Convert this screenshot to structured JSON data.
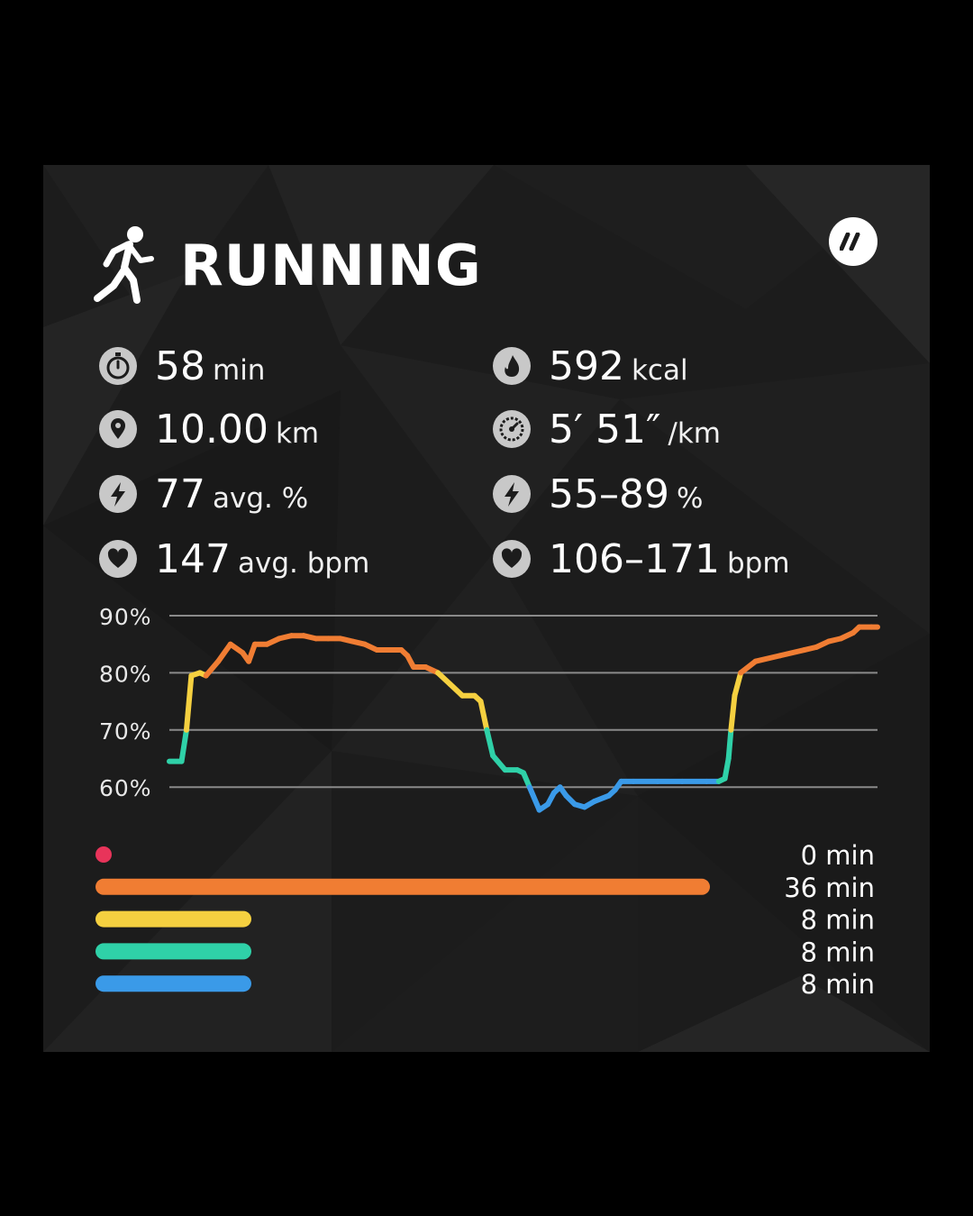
{
  "header": {
    "title": "RUNNING",
    "activity_icon": "running-person-icon",
    "brand_icon": "brand-logo-icon"
  },
  "stats": {
    "left": [
      {
        "icon": "stopwatch-icon",
        "value": "58",
        "unit": "min"
      },
      {
        "icon": "location-pin-icon",
        "value": "10.00",
        "unit": "km"
      },
      {
        "icon": "lightning-icon",
        "value": "77",
        "unit": "avg. %"
      },
      {
        "icon": "heart-icon",
        "value": "147",
        "unit": "avg. bpm"
      }
    ],
    "right": [
      {
        "icon": "flame-icon",
        "value": "592",
        "unit": "kcal"
      },
      {
        "icon": "speedometer-icon",
        "value": "5′ 51″",
        "unit": "/km"
      },
      {
        "icon": "lightning-icon",
        "value": "55–89",
        "unit": "%"
      },
      {
        "icon": "heart-icon",
        "value": "106–171",
        "unit": "bpm"
      }
    ]
  },
  "colors": {
    "zone_red": "#e8345a",
    "zone_orange": "#f07d33",
    "zone_yellow": "#f5d040",
    "zone_green": "#2fd1a8",
    "zone_blue": "#3a9ae8",
    "grid": "#8a8a8a",
    "icon_bg": "#c8c8c8"
  },
  "chart_data": {
    "type": "line",
    "ylabel": "",
    "xlabel": "",
    "yticks": [
      "90%",
      "80%",
      "70%",
      "60%"
    ],
    "ytick_values": [
      90,
      80,
      70,
      60
    ],
    "ylim": [
      55,
      92
    ],
    "xlim": [
      0,
      58
    ],
    "x_unit": "min",
    "zone_thresholds": {
      "blue_max": 61,
      "green_max": 70,
      "yellow_max": 80
    },
    "series": [
      {
        "values": [
          [
            0.0,
            64.5
          ],
          [
            1.0,
            64.5
          ],
          [
            1.4,
            70
          ],
          [
            1.8,
            79.5
          ],
          [
            2.5,
            80
          ],
          [
            3.0,
            79.5
          ],
          [
            4.0,
            82
          ],
          [
            5.0,
            85
          ],
          [
            6.0,
            83.5
          ],
          [
            6.5,
            82
          ],
          [
            7.0,
            85
          ],
          [
            8.0,
            85
          ],
          [
            9.0,
            86
          ],
          [
            10.0,
            86.5
          ],
          [
            11.0,
            86.5
          ],
          [
            12.0,
            86
          ],
          [
            13.0,
            86
          ],
          [
            14.0,
            86
          ],
          [
            15.0,
            85.5
          ],
          [
            16.0,
            85
          ],
          [
            17.0,
            84
          ],
          [
            18.0,
            84
          ],
          [
            19.0,
            84
          ],
          [
            19.5,
            83
          ],
          [
            20.0,
            81
          ],
          [
            21.0,
            81
          ],
          [
            22.0,
            80
          ],
          [
            23.0,
            78
          ],
          [
            24.0,
            76
          ],
          [
            25.0,
            76
          ],
          [
            25.5,
            75
          ],
          [
            26.0,
            70
          ],
          [
            26.5,
            65.5
          ],
          [
            27.5,
            63
          ],
          [
            28.5,
            63
          ],
          [
            29.0,
            62.5
          ],
          [
            29.5,
            60
          ],
          [
            30.3,
            56
          ],
          [
            31.0,
            57
          ],
          [
            31.5,
            59
          ],
          [
            32.0,
            60
          ],
          [
            32.5,
            58.5
          ],
          [
            33.2,
            57
          ],
          [
            34.0,
            56.5
          ],
          [
            34.8,
            57.5
          ],
          [
            36.0,
            58.5
          ],
          [
            36.5,
            59.5
          ],
          [
            37.0,
            61
          ],
          [
            38.0,
            61
          ],
          [
            40.0,
            61
          ],
          [
            42.0,
            61
          ],
          [
            44.0,
            61
          ],
          [
            45.0,
            61
          ],
          [
            45.5,
            61.5
          ],
          [
            45.8,
            65
          ],
          [
            46.0,
            70
          ],
          [
            46.3,
            76
          ],
          [
            46.8,
            80
          ],
          [
            48.0,
            82
          ],
          [
            50.0,
            83
          ],
          [
            52.0,
            84
          ],
          [
            53.0,
            84.5
          ],
          [
            54.0,
            85.5
          ],
          [
            55.0,
            86
          ],
          [
            56.0,
            87
          ],
          [
            56.5,
            88
          ],
          [
            57.5,
            88
          ],
          [
            58.0,
            88
          ]
        ]
      }
    ],
    "time_in_zones": [
      {
        "zone": "red",
        "minutes": 0,
        "label": "0 min"
      },
      {
        "zone": "orange",
        "minutes": 36,
        "label": "36 min"
      },
      {
        "zone": "yellow",
        "minutes": 8,
        "label": "8 min"
      },
      {
        "zone": "green",
        "minutes": 8,
        "label": "8 min"
      },
      {
        "zone": "blue",
        "minutes": 8,
        "label": "8 min"
      }
    ],
    "legend": "none",
    "grid": true
  }
}
